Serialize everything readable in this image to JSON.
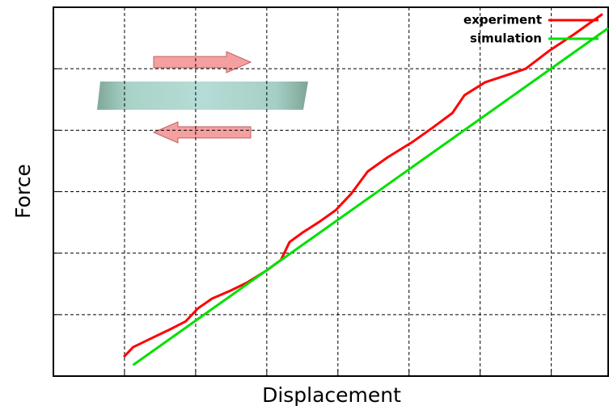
{
  "chart_data": {
    "type": "line",
    "x_label": "Displacement",
    "y_label": "Force",
    "xlim": [
      0,
      7.8
    ],
    "ylim": [
      0,
      6
    ],
    "xticks": [
      1,
      2,
      3,
      4,
      5,
      6,
      7
    ],
    "yticks": [
      1,
      2,
      3,
      4,
      5
    ],
    "grid": true,
    "tick_labels": false,
    "legend": "upper right",
    "series": [
      {
        "name": "experiment",
        "color": "#ff0000",
        "x": [
          0.99,
          1.12,
          1.35,
          1.64,
          1.86,
          2.03,
          2.23,
          2.49,
          2.72,
          3.0,
          3.2,
          3.32,
          3.51,
          3.74,
          3.97,
          4.19,
          4.42,
          4.7,
          5.05,
          5.33,
          5.61,
          5.78,
          6.07,
          6.41,
          6.64,
          6.98,
          7.32,
          7.72
        ],
        "values": [
          0.31,
          0.47,
          0.6,
          0.76,
          0.89,
          1.1,
          1.26,
          1.39,
          1.52,
          1.72,
          1.89,
          2.18,
          2.34,
          2.51,
          2.7,
          2.97,
          3.33,
          3.56,
          3.81,
          4.04,
          4.28,
          4.57,
          4.78,
          4.91,
          5.0,
          5.3,
          5.56,
          5.89
        ]
      },
      {
        "name": "simulation",
        "color": "#00e000",
        "x": [
          1.12,
          7.8
        ],
        "values": [
          0.18,
          5.66
        ]
      }
    ]
  }
}
